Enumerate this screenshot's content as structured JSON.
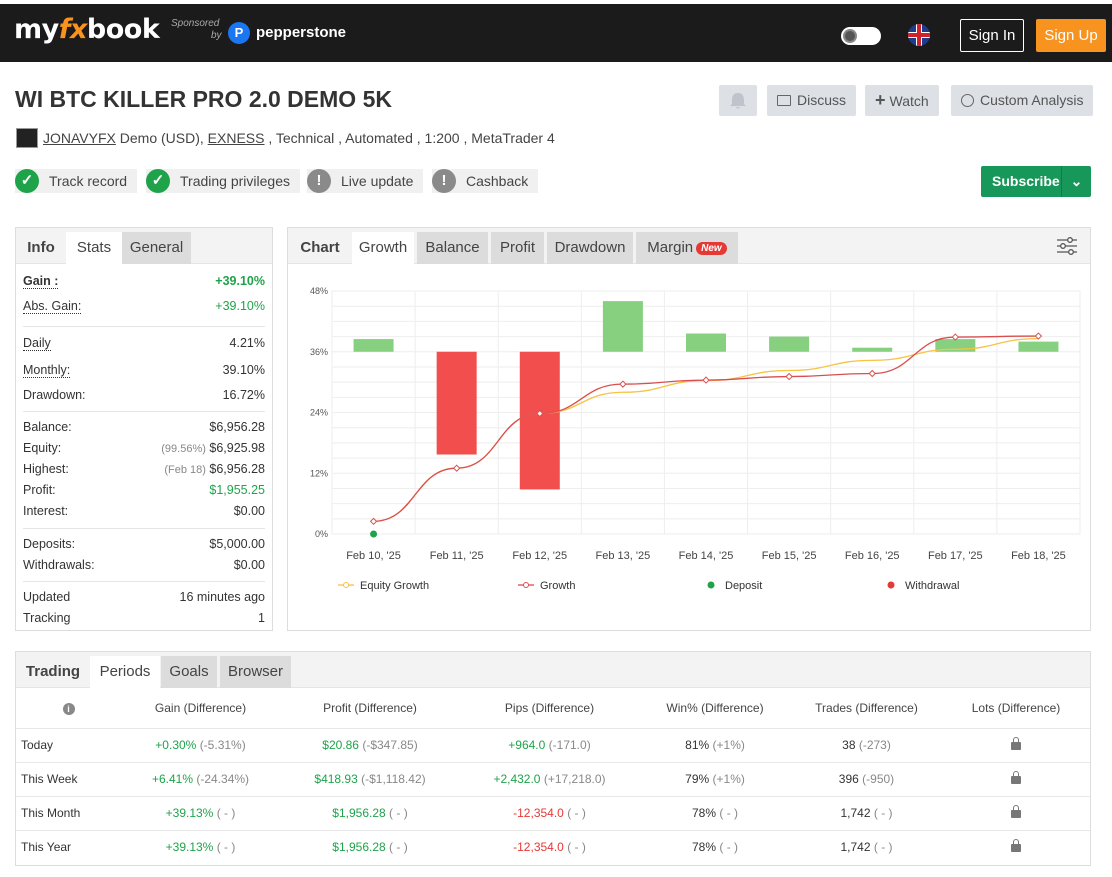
{
  "header": {
    "logo_my": "my",
    "logo_fx": "fx",
    "logo_book": "book",
    "sponsored_1": "Sponsored",
    "sponsored_2": "by",
    "sponsor_name": "pepperstone",
    "sign_in": "Sign In",
    "sign_up": "Sign Up"
  },
  "system": {
    "title": "WI BTC KILLER PRO 2.0 DEMO 5K",
    "owner": "JONAVYFX",
    "meta_1": " Demo (USD), ",
    "broker": "EXNESS",
    "meta_2": " , Technical , Automated , 1:200 , MetaTrader 4",
    "discuss": "Discuss",
    "watch": "Watch",
    "custom_analysis": "Custom Analysis",
    "subscribe": "Subscribe"
  },
  "badges": [
    {
      "label": "Track record",
      "status": "ok"
    },
    {
      "label": "Trading privileges",
      "status": "ok"
    },
    {
      "label": "Live update",
      "status": "warn"
    },
    {
      "label": "Cashback",
      "status": "warn"
    }
  ],
  "info_panel": {
    "tabs": [
      "Info",
      "Stats",
      "General"
    ],
    "gain_label": "Gain :",
    "gain": "+39.10%",
    "abs_gain_label": "Abs. Gain:",
    "abs_gain": "+39.10%",
    "daily_label": "Daily",
    "daily": "4.21%",
    "monthly_label": "Monthly:",
    "monthly": "39.10%",
    "drawdown_label": "Drawdown:",
    "drawdown": "16.72%",
    "balance_label": "Balance:",
    "balance": "$6,956.28",
    "equity_label": "Equity:",
    "equity_pct": "(99.56%)",
    "equity": "$6,925.98",
    "highest_label": "Highest:",
    "highest_date": "(Feb 18)",
    "highest": "$6,956.28",
    "profit_label": "Profit:",
    "profit": "$1,955.25",
    "interest_label": "Interest:",
    "interest": "$0.00",
    "deposits_label": "Deposits:",
    "deposits": "$5,000.00",
    "withdrawals_label": "Withdrawals:",
    "withdrawals": "$0.00",
    "updated_label": "Updated",
    "updated": "16 minutes ago",
    "tracking_label": "Tracking",
    "tracking": "1"
  },
  "chart_panel": {
    "tabs": [
      "Chart",
      "Growth",
      "Balance",
      "Profit",
      "Drawdown",
      "Margin"
    ],
    "new_badge": "New"
  },
  "chart_data": {
    "type": "bar",
    "categories": [
      "Feb 10, '25",
      "Feb 11, '25",
      "Feb 12, '25",
      "Feb 13, '25",
      "Feb 14, '25",
      "Feb 15, '25",
      "Feb 16, '25",
      "Feb 17, '25",
      "Feb 18, '25"
    ],
    "ylim": [
      0,
      48
    ],
    "yticks": [
      "0%",
      "12%",
      "24%",
      "36%",
      "48%"
    ],
    "grid": true,
    "legend_position": "bottom",
    "bars": [
      {
        "x": "Feb 10, '25",
        "from": 36.0,
        "to": 38.5
      },
      {
        "x": "Feb 11, '25",
        "from": 36.0,
        "to": 15.7
      },
      {
        "x": "Feb 12, '25",
        "from": 36.0,
        "to": 8.8
      },
      {
        "x": "Feb 13, '25",
        "from": 36.0,
        "to": 46.0
      },
      {
        "x": "Feb 14, '25",
        "from": 36.0,
        "to": 39.6
      },
      {
        "x": "Feb 15, '25",
        "from": 36.0,
        "to": 39.0
      },
      {
        "x": "Feb 16, '25",
        "from": 36.0,
        "to": 36.8
      },
      {
        "x": "Feb 17, '25",
        "from": 36.0,
        "to": 38.5
      },
      {
        "x": "Feb 18, '25",
        "from": 36.0,
        "to": 38.0
      }
    ],
    "series": [
      {
        "name": "Equity Growth",
        "color": "#f6c343",
        "values": [
          2.5,
          13.0,
          23.8,
          28.0,
          30.3,
          32.3,
          34.3,
          36.5,
          38.6
        ]
      },
      {
        "name": "Growth",
        "color": "#d94f4f",
        "values": [
          2.5,
          13.0,
          23.8,
          29.6,
          30.4,
          31.1,
          31.7,
          38.9,
          39.1
        ]
      }
    ],
    "markers": [
      {
        "name": "Deposit",
        "color": "#1fa34a",
        "x": "Feb 10, '25",
        "value": 0
      }
    ],
    "legend": [
      {
        "name": "Equity Growth",
        "color": "#f6c343",
        "kind": "line"
      },
      {
        "name": "Growth",
        "color": "#d94f4f",
        "kind": "line"
      },
      {
        "name": "Deposit",
        "color": "#1fa34a",
        "kind": "dot"
      },
      {
        "name": "Withdrawal",
        "color": "#e53935",
        "kind": "dot"
      }
    ]
  },
  "trading_panel": {
    "tabs": [
      "Trading",
      "Periods",
      "Goals",
      "Browser"
    ],
    "columns": [
      "Gain (Difference)",
      "Profit (Difference)",
      "Pips (Difference)",
      "Win% (Difference)",
      "Trades (Difference)",
      "Lots (Difference)"
    ],
    "rows": [
      {
        "period": "Today",
        "gain": "+0.30%",
        "gain_d": "(-5.31%)",
        "profit": "$20.86",
        "profit_d": "(-$347.85)",
        "pips": "+964.0",
        "pips_d": "(-171.0)",
        "pips_neg": false,
        "win": "81%",
        "win_d": "(+1%)",
        "trades": "38",
        "trades_d": "(-273)"
      },
      {
        "period": "This Week",
        "gain": "+6.41%",
        "gain_d": "(-24.34%)",
        "profit": "$418.93",
        "profit_d": "(-$1,118.42)",
        "pips": "+2,432.0",
        "pips_d": "(+17,218.0)",
        "pips_neg": false,
        "win": "79%",
        "win_d": "(+1%)",
        "trades": "396",
        "trades_d": "(-950)"
      },
      {
        "period": "This Month",
        "gain": "+39.13%",
        "gain_d": "( - )",
        "profit": "$1,956.28",
        "profit_d": "( - )",
        "pips": "-12,354.0",
        "pips_d": "( - )",
        "pips_neg": true,
        "win": "78%",
        "win_d": "( - )",
        "trades": "1,742",
        "trades_d": "( - )"
      },
      {
        "period": "This Year",
        "gain": "+39.13%",
        "gain_d": "( - )",
        "profit": "$1,956.28",
        "profit_d": "( - )",
        "pips": "-12,354.0",
        "pips_d": "( - )",
        "pips_neg": true,
        "win": "78%",
        "win_d": "( - )",
        "trades": "1,742",
        "trades_d": "( - )"
      }
    ]
  }
}
